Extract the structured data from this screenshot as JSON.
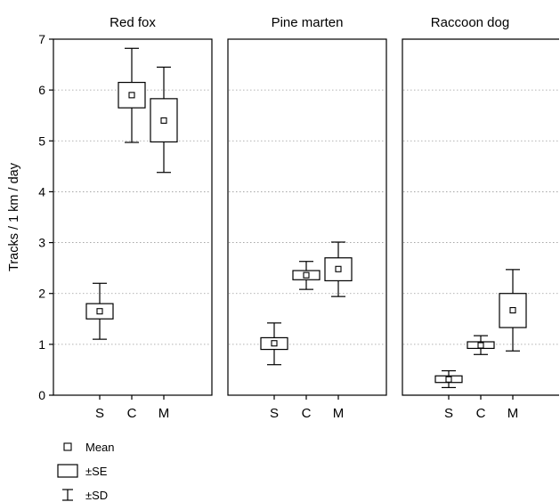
{
  "chart_data": {
    "type": "box",
    "ylabel": "Tracks / 1 km / day",
    "ylim": [
      0,
      7
    ],
    "yticks": [
      "0",
      "1",
      "2",
      "3",
      "4",
      "5",
      "6",
      "7"
    ],
    "categories": [
      "S",
      "C",
      "M"
    ],
    "grid": true,
    "panels": [
      {
        "title": "Red fox",
        "values": [
          {
            "category": "S",
            "mean": 1.65,
            "se_low": 1.5,
            "se_high": 1.8,
            "sd_low": 1.1,
            "sd_high": 2.2
          },
          {
            "category": "C",
            "mean": 5.9,
            "se_low": 5.65,
            "se_high": 6.15,
            "sd_low": 4.97,
            "sd_high": 6.82
          },
          {
            "category": "M",
            "mean": 5.4,
            "se_low": 4.98,
            "se_high": 5.83,
            "sd_low": 4.38,
            "sd_high": 6.45
          }
        ]
      },
      {
        "title": "Pine marten",
        "values": [
          {
            "category": "S",
            "mean": 1.02,
            "se_low": 0.9,
            "se_high": 1.13,
            "sd_low": 0.6,
            "sd_high": 1.42
          },
          {
            "category": "C",
            "mean": 2.36,
            "se_low": 2.27,
            "se_high": 2.45,
            "sd_low": 2.08,
            "sd_high": 2.63
          },
          {
            "category": "M",
            "mean": 2.48,
            "se_low": 2.25,
            "se_high": 2.7,
            "sd_low": 1.94,
            "sd_high": 3.01
          }
        ]
      },
      {
        "title": "Raccoon dog",
        "values": [
          {
            "category": "S",
            "mean": 0.31,
            "se_low": 0.25,
            "se_high": 0.38,
            "sd_low": 0.15,
            "sd_high": 0.48
          },
          {
            "category": "C",
            "mean": 0.98,
            "se_low": 0.92,
            "se_high": 1.05,
            "sd_low": 0.8,
            "sd_high": 1.17
          },
          {
            "category": "M",
            "mean": 1.67,
            "se_low": 1.33,
            "se_high": 2.0,
            "sd_low": 0.87,
            "sd_high": 2.47
          }
        ]
      }
    ],
    "legend": [
      {
        "symbol": "mean",
        "label": "Mean"
      },
      {
        "symbol": "se",
        "label": "±SE"
      },
      {
        "symbol": "sd",
        "label": "±SD"
      }
    ],
    "legend_position": "bottom-left"
  }
}
